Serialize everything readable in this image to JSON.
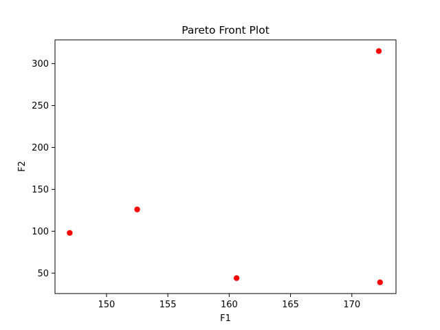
{
  "chart_data": {
    "type": "scatter",
    "title": "Pareto Front Plot",
    "xlabel": "F1",
    "ylabel": "F2",
    "xlim": [
      145.8,
      173.6
    ],
    "ylim": [
      25.6,
      328.4
    ],
    "xticks": [
      150,
      155,
      160,
      165,
      170
    ],
    "yticks": [
      50,
      100,
      150,
      200,
      250,
      300
    ],
    "grid": false,
    "marker_color": "#ff0000",
    "series": [
      {
        "x": [
          147.0,
          152.5,
          160.6,
          172.2,
          172.3
        ],
        "y": [
          98.0,
          126.0,
          44.0,
          315.0,
          39.0
        ]
      }
    ]
  }
}
